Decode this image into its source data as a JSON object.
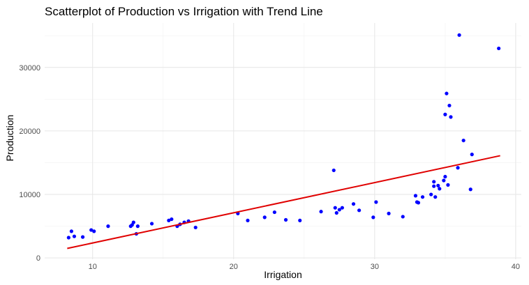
{
  "chart_data": {
    "type": "scatter",
    "title": "Scatterplot of Production vs Irrigation with Trend Line",
    "xlabel": "Irrigation",
    "ylabel": "Production",
    "xlim": [
      6.6,
      40.4
    ],
    "ylim": [
      -200,
      37000
    ],
    "xticks": [
      10,
      20,
      30,
      40
    ],
    "yticks": [
      0,
      10000,
      20000,
      30000
    ],
    "grid": true,
    "legend": "none",
    "colors": {
      "points": "#0000ff",
      "trend": "#e00000",
      "grid": "#e6e6e6"
    },
    "series": [
      {
        "type": "scatter",
        "x": [
          8.3,
          8.5,
          8.7,
          9.3,
          9.9,
          10.1,
          11.1,
          12.7,
          12.8,
          12.9,
          13.1,
          13.2,
          14.2,
          15.4,
          15.6,
          16.0,
          16.2,
          16.5,
          16.8,
          17.3,
          20.3,
          21.0,
          22.2,
          22.9,
          23.7,
          24.7,
          26.2,
          27.1,
          27.2,
          27.3,
          27.5,
          27.7,
          28.5,
          28.9,
          29.9,
          30.1,
          31.0,
          32.0,
          32.9,
          33.0,
          33.1,
          33.4,
          34.0,
          34.2,
          34.2,
          34.3,
          34.5,
          34.6,
          34.9,
          35.0,
          35.0,
          35.1,
          35.2,
          35.3,
          35.4,
          35.9,
          36.0,
          36.3,
          36.8,
          36.9,
          38.8
        ],
        "y": [
          3200,
          4200,
          3400,
          3300,
          4400,
          4200,
          5000,
          5000,
          5200,
          5600,
          3800,
          5000,
          5400,
          5900,
          6100,
          5000,
          5300,
          5600,
          5800,
          4800,
          7000,
          5900,
          6400,
          7200,
          6000,
          5900,
          7300,
          13800,
          7900,
          7100,
          7600,
          7900,
          8500,
          7500,
          6400,
          8800,
          7000,
          6500,
          9800,
          8800,
          8700,
          9600,
          10000,
          12000,
          11300,
          9600,
          11400,
          10900,
          12200,
          12800,
          22600,
          25900,
          11500,
          24000,
          22200,
          14200,
          35100,
          18500,
          10800,
          16300,
          33000
        ]
      },
      {
        "type": "line",
        "name": "trend",
        "x": [
          8.2,
          38.9
        ],
        "y": [
          1500,
          16100
        ]
      }
    ]
  }
}
